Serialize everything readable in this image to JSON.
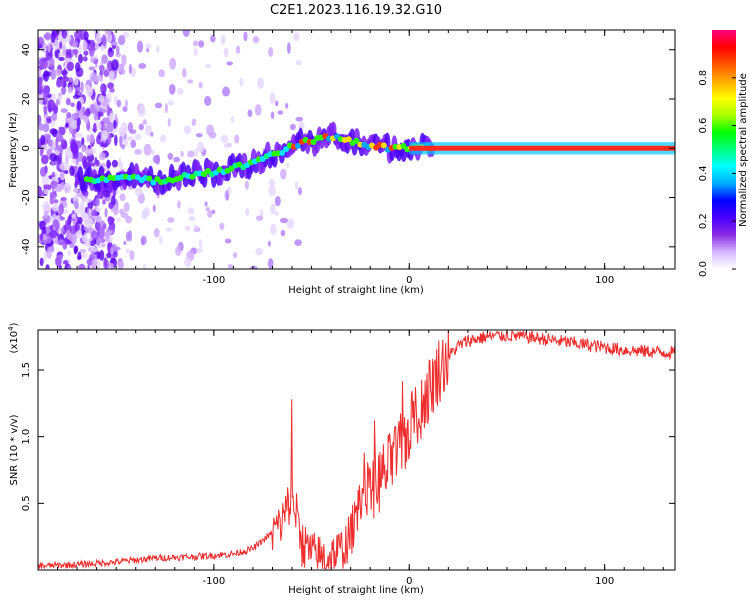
{
  "title": "C2E1.2023.116.19.32.G10",
  "colors": {
    "snr_line": "#ee2c2c",
    "track_core": "#ff2a1a",
    "axes": "#000000",
    "scatter_purple": "#8a2be2"
  },
  "chart_data": [
    {
      "type": "heatmap",
      "name": "spectrogram",
      "xlabel": "Height of straight line (km)",
      "ylabel": "Frequency (Hz)",
      "xlim": [
        -190,
        136
      ],
      "ylim": [
        -49,
        48
      ],
      "xticks": [
        -100,
        0,
        100
      ],
      "xtick_labels": [
        "-100",
        "0",
        "100"
      ],
      "yticks": [
        -40,
        -20,
        0,
        20,
        40
      ],
      "ytick_labels": [
        "-40",
        "-20",
        "0",
        "20",
        "40"
      ],
      "track": {
        "x": [
          -170,
          -155,
          -145,
          -135,
          -125,
          -115,
          -105,
          -95,
          -85,
          -75,
          -65,
          -55,
          -45,
          -38,
          -30,
          -20,
          -10,
          0,
          10,
          20,
          40,
          60,
          80,
          100,
          120,
          136
        ],
        "y": [
          -13,
          -12,
          -12,
          -13,
          -13,
          -11,
          -10,
          -9,
          -7,
          -4,
          -1,
          2,
          4,
          5,
          3,
          1,
          0,
          0,
          0,
          0,
          0,
          0,
          0,
          0,
          0,
          0
        ]
      },
      "colorbar": {
        "label": "Normalized spectral amplitude",
        "range": [
          0,
          1
        ],
        "ticks": [
          0,
          0.2,
          0.4,
          0.6,
          0.8
        ],
        "tick_labels": [
          "0.0",
          "0.2",
          "0.4",
          "0.6",
          "0.8"
        ],
        "colormap": [
          "#ffffff",
          "#d6b8ff",
          "#8a2be2",
          "#4b00ff",
          "#0000ff",
          "#00aaff",
          "#00ffff",
          "#00ff80",
          "#00ff00",
          "#aaff00",
          "#ffff00",
          "#ffaa00",
          "#ff5500",
          "#ff0000",
          "#ff0080"
        ]
      }
    },
    {
      "type": "line",
      "name": "snr",
      "xlabel": "Height of straight line (km)",
      "ylabel": "SNR (10 * v/v)",
      "multiplier_label": "(x10",
      "multiplier_exp": "4",
      "xlim": [
        -190,
        136
      ],
      "ylim": [
        0,
        18000
      ],
      "xticks": [
        -100,
        0,
        100
      ],
      "xtick_labels": [
        "-100",
        "0",
        "100"
      ],
      "yticks": [
        5000,
        10000,
        15000
      ],
      "ytick_labels": [
        "0.5",
        "1.0",
        "1.5"
      ],
      "series": [
        {
          "name": "SNR",
          "x": [
            -190,
            -170,
            -150,
            -130,
            -110,
            -90,
            -80,
            -70,
            -65,
            -62,
            -60,
            -57,
            -55,
            -50,
            -45,
            -40,
            -35,
            -30,
            -27,
            -25,
            -20,
            -15,
            -10,
            -5,
            0,
            5,
            10,
            15,
            20,
            25,
            30,
            40,
            50,
            60,
            70,
            80,
            90,
            100,
            110,
            120,
            136
          ],
          "y": [
            300,
            400,
            600,
            900,
            1000,
            1200,
            1600,
            2800,
            3600,
            4800,
            5500,
            3800,
            2000,
            1200,
            900,
            1000,
            1400,
            2500,
            4500,
            5500,
            6000,
            6800,
            7800,
            9000,
            10500,
            12000,
            13500,
            15000,
            16000,
            16800,
            17200,
            17500,
            17600,
            17500,
            17300,
            17100,
            16900,
            16700,
            16500,
            16400,
            16300
          ]
        }
      ]
    }
  ]
}
